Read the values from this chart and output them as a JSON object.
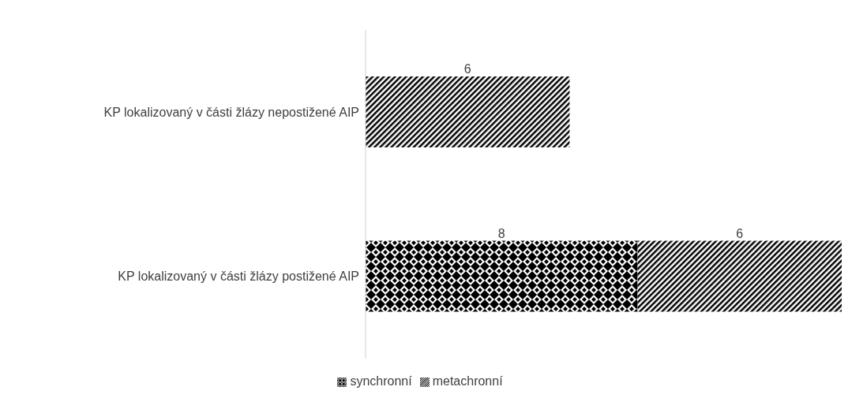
{
  "chart_data": {
    "type": "bar",
    "orientation": "horizontal",
    "stacked": true,
    "categories": [
      "KP lokalizovaný v části žlázy nepostižené AIP",
      "KP lokalizovaný v části žlázy postižené AIP"
    ],
    "series": [
      {
        "name": "synchronní",
        "color": "#000000",
        "values": [
          null,
          8
        ]
      },
      {
        "name": "metachronní",
        "color": "#000000",
        "values": [
          6,
          6
        ]
      }
    ],
    "data_labels": true,
    "legend": "bottom",
    "grid": false
  }
}
